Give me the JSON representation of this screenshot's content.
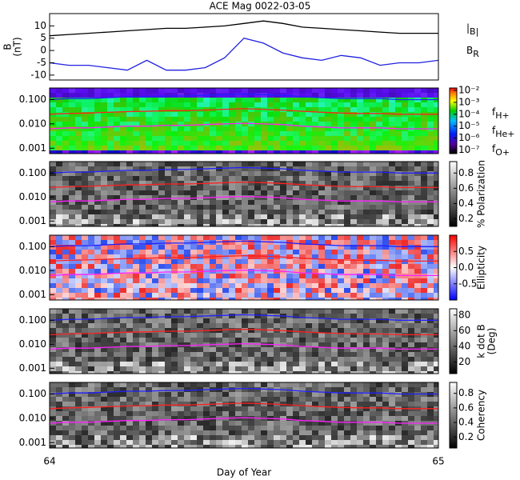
{
  "chart_data": [
    {
      "type": "line",
      "title": "ACE Mag 0022-03-05",
      "ylabel": [
        "B",
        "(nT)"
      ],
      "x": [
        64.0,
        64.05,
        64.1,
        64.15,
        64.2,
        64.25,
        64.3,
        64.35,
        64.4,
        64.45,
        64.5,
        64.55,
        64.6,
        64.65,
        64.7,
        64.75,
        64.8,
        64.85,
        64.9,
        64.95,
        65.0
      ],
      "xlim": [
        64,
        65
      ],
      "ylim": [
        -12,
        15
      ],
      "yticks": [
        -10,
        -5,
        0,
        5,
        10
      ],
      "series": [
        {
          "name": "|B|",
          "color": "#000000",
          "values": [
            6,
            6.5,
            7,
            7.5,
            8,
            8.5,
            9,
            9,
            9.5,
            10,
            11,
            12,
            11,
            9.5,
            9,
            8.5,
            8,
            7.5,
            7,
            7,
            7
          ]
        },
        {
          "name": "BR",
          "color": "#2020e0",
          "values": [
            -5,
            -6,
            -6,
            -7,
            -8,
            -4,
            -8,
            -8,
            -7,
            -3,
            5,
            3,
            -1,
            -3,
            -4,
            -2,
            -3,
            -6,
            -5,
            -5,
            -4
          ]
        }
      ]
    },
    {
      "type": "spectrogram",
      "cmap": "rainbow",
      "x": [
        64.0,
        64.05,
        64.1,
        64.15,
        64.2,
        64.25,
        64.3,
        64.35,
        64.4,
        64.45,
        64.5,
        64.55,
        64.6,
        64.65,
        64.7,
        64.75,
        64.8,
        64.85,
        64.9,
        64.95,
        65.0
      ],
      "xlim": [
        64,
        65
      ],
      "ylim": [
        0.0006,
        0.3
      ],
      "log_y": true,
      "yticks": [
        {
          "value": 0.001,
          "label": "0.001"
        },
        {
          "value": 0.01,
          "label": "0.010"
        },
        {
          "value": 0.1,
          "label": "0.100"
        }
      ],
      "cbar_lim": [
        -7.3,
        -1.8
      ],
      "cbar_ticks": [
        {
          "value": -2,
          "label": "10⁻²"
        },
        {
          "value": -3,
          "label": "10⁻³"
        },
        {
          "value": -4,
          "label": "10⁻⁴"
        },
        {
          "value": -5,
          "label": "10⁻⁵"
        },
        {
          "value": -6,
          "label": "10⁻⁶"
        },
        {
          "value": -7,
          "label": "10⁻⁷"
        }
      ],
      "series": [
        {
          "name": "fH+",
          "color": "#2020ff",
          "values": [
            0.1,
            0.11,
            0.11,
            0.12,
            0.13,
            0.13,
            0.14,
            0.14,
            0.15,
            0.16,
            0.17,
            0.16,
            0.15,
            0.13,
            0.12,
            0.11,
            0.11,
            0.11,
            0.1,
            0.1,
            0.1
          ]
        },
        {
          "name": "fHe+",
          "color": "#ff2020",
          "values": [
            0.025,
            0.027,
            0.028,
            0.03,
            0.032,
            0.033,
            0.035,
            0.035,
            0.037,
            0.04,
            0.042,
            0.04,
            0.037,
            0.033,
            0.03,
            0.028,
            0.027,
            0.027,
            0.025,
            0.025,
            0.025
          ]
        },
        {
          "name": "fO+",
          "color": "#ff20ff",
          "values": [
            0.0063,
            0.0069,
            0.0069,
            0.0075,
            0.0081,
            0.0081,
            0.0088,
            0.0088,
            0.0094,
            0.01,
            0.0106,
            0.01,
            0.0094,
            0.0081,
            0.0075,
            0.0069,
            0.0069,
            0.0069,
            0.0063,
            0.0063,
            0.0063
          ]
        }
      ]
    },
    {
      "type": "spectrogram",
      "cmap": "gray",
      "cbar_label": [
        "% Polarization"
      ],
      "xlim": [
        64,
        65
      ],
      "ylim": [
        0.0006,
        0.3
      ],
      "log_y": true,
      "yticks": [
        {
          "value": 0.001,
          "label": "0.001"
        },
        {
          "value": 0.01,
          "label": "0.010"
        },
        {
          "value": 0.1,
          "label": "0.100"
        }
      ],
      "cbar_lim": [
        0.1,
        0.95
      ],
      "cbar_ticks": [
        0.2,
        0.4,
        0.6,
        0.8
      ]
    },
    {
      "type": "spectrogram",
      "cmap": "bwr",
      "cbar_label": [
        "Ellipticity"
      ],
      "xlim": [
        64,
        65
      ],
      "ylim": [
        0.0006,
        0.3
      ],
      "log_y": true,
      "yticks": [
        {
          "value": 0.001,
          "label": "0.001"
        },
        {
          "value": 0.01,
          "label": "0.010"
        },
        {
          "value": 0.1,
          "label": "0.100"
        }
      ],
      "cbar_lim": [
        -1,
        1
      ],
      "cbar_ticks": [
        -0.5,
        {
          "value": 0,
          "label": "0.0"
        },
        0.5
      ]
    },
    {
      "type": "spectrogram",
      "cmap": "gray",
      "cbar_label": [
        "k dot B",
        "(Deg)"
      ],
      "xlim": [
        64,
        65
      ],
      "ylim": [
        0.0006,
        0.3
      ],
      "log_y": true,
      "yticks": [
        {
          "value": 0.001,
          "label": "0.001"
        },
        {
          "value": 0.01,
          "label": "0.010"
        },
        {
          "value": 0.1,
          "label": "0.100"
        }
      ],
      "cbar_lim": [
        5,
        88
      ],
      "cbar_ticks": [
        20,
        40,
        60,
        80
      ]
    },
    {
      "type": "spectrogram",
      "cmap": "gray",
      "cbar_label": [
        "Coherency"
      ],
      "xlim": [
        64,
        65
      ],
      "ylim": [
        0.0006,
        0.3
      ],
      "log_y": true,
      "yticks": [
        {
          "value": 0.001,
          "label": "0.001"
        },
        {
          "value": 0.01,
          "label": "0.010"
        },
        {
          "value": 0.1,
          "label": "0.100"
        }
      ],
      "cbar_lim": [
        0.05,
        0.95
      ],
      "cbar_ticks": [
        0.2,
        0.4,
        0.6,
        0.8
      ],
      "xlabel": "Day of Year",
      "xticks": [
        64,
        65
      ]
    }
  ]
}
